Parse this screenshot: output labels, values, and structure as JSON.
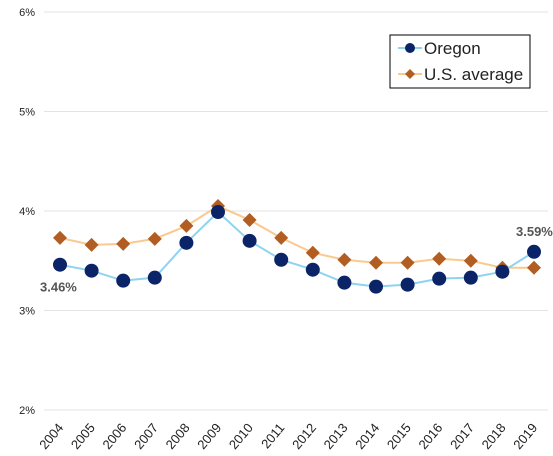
{
  "chart_data": {
    "type": "line",
    "categories": [
      "2004",
      "2005",
      "2006",
      "2007",
      "2008",
      "2009",
      "2010",
      "2011",
      "2012",
      "2013",
      "2014",
      "2015",
      "2016",
      "2017",
      "2018",
      "2019"
    ],
    "series": [
      {
        "name": "Oregon",
        "color": "#8ed3ef",
        "marker_color": "#0b2467",
        "marker": "circle",
        "values": [
          3.46,
          3.4,
          3.3,
          3.33,
          3.68,
          3.99,
          3.7,
          3.51,
          3.41,
          3.28,
          3.24,
          3.26,
          3.32,
          3.33,
          3.39,
          3.59
        ],
        "value_labels": [
          "3.46%",
          null,
          null,
          null,
          null,
          null,
          null,
          null,
          null,
          null,
          null,
          null,
          null,
          null,
          null,
          "3.59%"
        ]
      },
      {
        "name": "U.S. average",
        "color": "#fbc98f",
        "marker_color": "#b25e22",
        "marker": "diamond",
        "values": [
          3.73,
          3.66,
          3.67,
          3.72,
          3.85,
          4.05,
          3.91,
          3.73,
          3.58,
          3.51,
          3.48,
          3.48,
          3.52,
          3.5,
          3.43,
          3.43
        ]
      }
    ],
    "ylim": [
      2,
      6
    ],
    "yticks": [
      {
        "value": 2,
        "label": "2%"
      },
      {
        "value": 3,
        "label": "3%"
      },
      {
        "value": 4,
        "label": "4%"
      },
      {
        "value": 5,
        "label": "5%"
      },
      {
        "value": 6,
        "label": "6%"
      }
    ],
    "grid": true,
    "legend": "top-right"
  }
}
